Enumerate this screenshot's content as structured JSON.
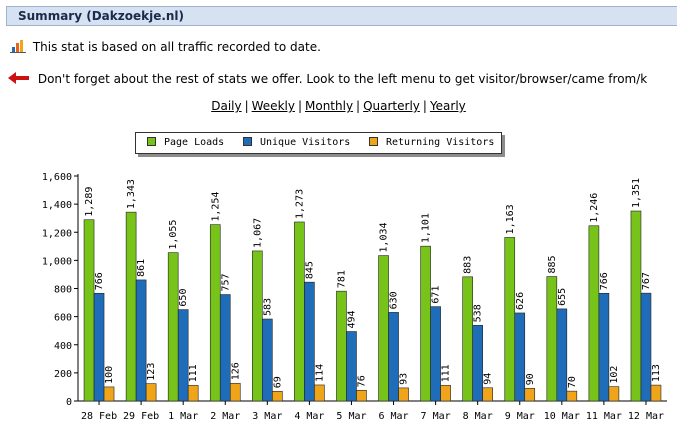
{
  "header": {
    "title": "Summary (Dakzoekje.nl)"
  },
  "info": {
    "stat_note": "This stat is based on all traffic recorded to date.",
    "reminder": "Don't forget about the rest of stats we offer. Look to the left menu to get visitor/browser/came from/k"
  },
  "periods": [
    "Daily",
    "Weekly",
    "Monthly",
    "Quarterly",
    "Yearly"
  ],
  "colors": {
    "page_loads": "#77c31a",
    "unique_visitors": "#1f6db8",
    "returning_visitors": "#f0a41a"
  },
  "chart_data": {
    "type": "bar",
    "categories": [
      "28 Feb",
      "29 Feb",
      "1 Mar",
      "2 Mar",
      "3 Mar",
      "4 Mar",
      "5 Mar",
      "6 Mar",
      "7 Mar",
      "8 Mar",
      "9 Mar",
      "10 Mar",
      "11 Mar",
      "12 Mar"
    ],
    "series": [
      {
        "name": "Page Loads",
        "values": [
          1289,
          1343,
          1055,
          1254,
          1067,
          1273,
          781,
          1034,
          1101,
          883,
          1163,
          885,
          1246,
          1351
        ]
      },
      {
        "name": "Unique Visitors",
        "values": [
          766,
          861,
          650,
          757,
          583,
          845,
          494,
          630,
          671,
          538,
          626,
          655,
          766,
          767
        ]
      },
      {
        "name": "Returning Visitors",
        "values": [
          100,
          123,
          111,
          126,
          69,
          114,
          76,
          93,
          111,
          94,
          90,
          70,
          102,
          113
        ]
      }
    ],
    "value_labels": [
      [
        "1,289",
        "1,343",
        "1,055",
        "1,254",
        "1,067",
        "1,273",
        "781",
        "1,034",
        "1,101",
        "883",
        "1,163",
        "885",
        "1,246",
        "1,351"
      ],
      [
        "766",
        "861",
        "650",
        "757",
        "583",
        "845",
        "494",
        "630",
        "671",
        "538",
        "626",
        "655",
        "766",
        "767"
      ],
      [
        "100",
        "123",
        "111",
        "126",
        "69",
        "114",
        "76",
        "93",
        "111",
        "94",
        "90",
        "70",
        "102",
        "113"
      ]
    ],
    "y_ticks": [
      "0",
      "200",
      "400",
      "600",
      "800",
      "1,000",
      "1,200",
      "1,400",
      "1,600"
    ],
    "ylim": [
      0,
      1600
    ],
    "legend_position": "top",
    "grid": false
  }
}
